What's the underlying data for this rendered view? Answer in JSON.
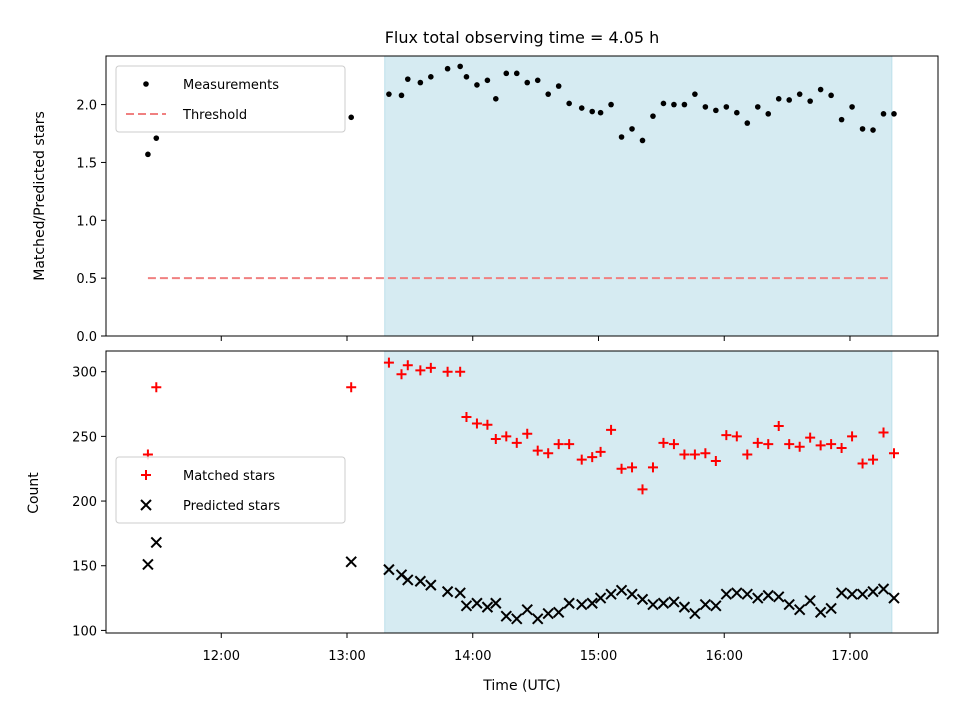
{
  "chart_data": [
    {
      "type": "scatter",
      "title": "Flux total observing time = 4.05 h",
      "ylabel": "Matched/Predicted stars",
      "xlabel": "",
      "xlim": [
        "11:05",
        "17:42"
      ],
      "ylim": [
        0,
        2.42
      ],
      "yticks": [
        0.0,
        0.5,
        1.0,
        1.5,
        2.0
      ],
      "ytick_labels": [
        "0.0",
        "0.5",
        "1.0",
        "1.5",
        "2.0"
      ],
      "shaded_span": {
        "start": "13:18",
        "end": "17:20",
        "color": "#add8e6"
      },
      "legend": {
        "placement": "upper-left",
        "entries": [
          "Measurements",
          "Threshold"
        ]
      },
      "series": [
        {
          "name": "Measurements",
          "marker": "dot",
          "color": "#000000",
          "x": [
            "11:25",
            "11:29",
            "13:02",
            "13:20",
            "13:26",
            "13:29",
            "13:35",
            "13:40",
            "13:48",
            "13:54",
            "13:57",
            "14:02",
            "14:07",
            "14:11",
            "14:16",
            "14:21",
            "14:26",
            "14:31",
            "14:36",
            "14:41",
            "14:46",
            "14:52",
            "14:57",
            "15:01",
            "15:06",
            "15:11",
            "15:16",
            "15:21",
            "15:26",
            "15:31",
            "15:36",
            "15:41",
            "15:46",
            "15:51",
            "15:56",
            "16:01",
            "16:06",
            "16:11",
            "16:16",
            "16:21",
            "16:26",
            "16:31",
            "16:36",
            "16:41",
            "16:46",
            "16:51",
            "16:56",
            "17:01",
            "17:06",
            "17:11",
            "17:16",
            "17:21"
          ],
          "y": [
            1.57,
            1.71,
            1.89,
            2.09,
            2.08,
            2.22,
            2.19,
            2.24,
            2.31,
            2.33,
            2.24,
            2.17,
            2.21,
            2.05,
            2.27,
            2.27,
            2.19,
            2.21,
            2.09,
            2.16,
            2.01,
            1.97,
            1.94,
            1.93,
            2.0,
            1.72,
            1.79,
            1.69,
            1.9,
            2.01,
            2.0,
            2.0,
            2.09,
            1.98,
            1.95,
            1.98,
            1.93,
            1.84,
            1.98,
            1.92,
            2.05,
            2.04,
            2.09,
            2.03,
            2.13,
            2.08,
            1.87,
            1.98,
            1.79,
            1.78,
            1.92,
            1.92
          ]
        },
        {
          "name": "Threshold",
          "style": "dashed",
          "color": "#f08080",
          "x": [
            "11:25",
            "17:20"
          ],
          "y": [
            0.5,
            0.5
          ]
        }
      ]
    },
    {
      "type": "scatter",
      "title": "",
      "xlabel": "Time (UTC)",
      "ylabel": "Count",
      "xlim": [
        "11:05",
        "17:42"
      ],
      "ylim": [
        98,
        316
      ],
      "xticks": [
        "12:00",
        "13:00",
        "14:00",
        "15:00",
        "16:00",
        "17:00"
      ],
      "xtick_labels": [
        "12:00",
        "13:00",
        "14:00",
        "15:00",
        "16:00",
        "17:00"
      ],
      "yticks": [
        100,
        150,
        200,
        250,
        300
      ],
      "ytick_labels": [
        "100",
        "150",
        "200",
        "250",
        "300"
      ],
      "shaded_span": {
        "start": "13:18",
        "end": "17:20",
        "color": "#add8e6"
      },
      "legend": {
        "placement": "center-left",
        "entries": [
          "Matched stars",
          "Predicted stars"
        ]
      },
      "series": [
        {
          "name": "Matched stars",
          "marker": "plus",
          "color": "#ff0000",
          "x": [
            "11:25",
            "11:29",
            "13:02",
            "13:20",
            "13:26",
            "13:29",
            "13:35",
            "13:40",
            "13:48",
            "13:54",
            "13:57",
            "14:02",
            "14:07",
            "14:11",
            "14:16",
            "14:21",
            "14:26",
            "14:31",
            "14:36",
            "14:41",
            "14:46",
            "14:52",
            "14:57",
            "15:01",
            "15:06",
            "15:11",
            "15:16",
            "15:21",
            "15:26",
            "15:31",
            "15:36",
            "15:41",
            "15:46",
            "15:51",
            "15:56",
            "16:01",
            "16:06",
            "16:11",
            "16:16",
            "16:21",
            "16:26",
            "16:31",
            "16:36",
            "16:41",
            "16:46",
            "16:51",
            "16:56",
            "17:01",
            "17:06",
            "17:11",
            "17:16",
            "17:21"
          ],
          "y": [
            236,
            288,
            288,
            307,
            298,
            305,
            301,
            303,
            300,
            300,
            265,
            260,
            259,
            248,
            250,
            245,
            252,
            239,
            237,
            244,
            244,
            232,
            234,
            238,
            255,
            225,
            226,
            209,
            226,
            245,
            244,
            236,
            236,
            237,
            231,
            251,
            250,
            236,
            245,
            244,
            258,
            244,
            242,
            249,
            243,
            244,
            241,
            250,
            229,
            232,
            253,
            237
          ]
        },
        {
          "name": "Predicted stars",
          "marker": "x",
          "color": "#000000",
          "x": [
            "11:25",
            "11:29",
            "13:02",
            "13:20",
            "13:26",
            "13:29",
            "13:35",
            "13:40",
            "13:48",
            "13:54",
            "13:57",
            "14:02",
            "14:07",
            "14:11",
            "14:16",
            "14:21",
            "14:26",
            "14:31",
            "14:36",
            "14:41",
            "14:46",
            "14:52",
            "14:57",
            "15:01",
            "15:06",
            "15:11",
            "15:16",
            "15:21",
            "15:26",
            "15:31",
            "15:36",
            "15:41",
            "15:46",
            "15:51",
            "15:56",
            "16:01",
            "16:06",
            "16:11",
            "16:16",
            "16:21",
            "16:26",
            "16:31",
            "16:36",
            "16:41",
            "16:46",
            "16:51",
            "16:56",
            "17:01",
            "17:06",
            "17:11",
            "17:16",
            "17:21"
          ],
          "y": [
            151,
            168,
            153,
            147,
            143,
            139,
            138,
            135,
            130,
            129,
            119,
            121,
            118,
            121,
            111,
            109,
            116,
            109,
            113,
            114,
            121,
            120,
            121,
            125,
            128,
            131,
            128,
            124,
            120,
            121,
            122,
            118,
            113,
            120,
            119,
            128,
            129,
            128,
            125,
            127,
            126,
            120,
            116,
            123,
            114,
            117,
            129,
            128,
            128,
            130,
            132,
            125
          ]
        }
      ]
    }
  ]
}
